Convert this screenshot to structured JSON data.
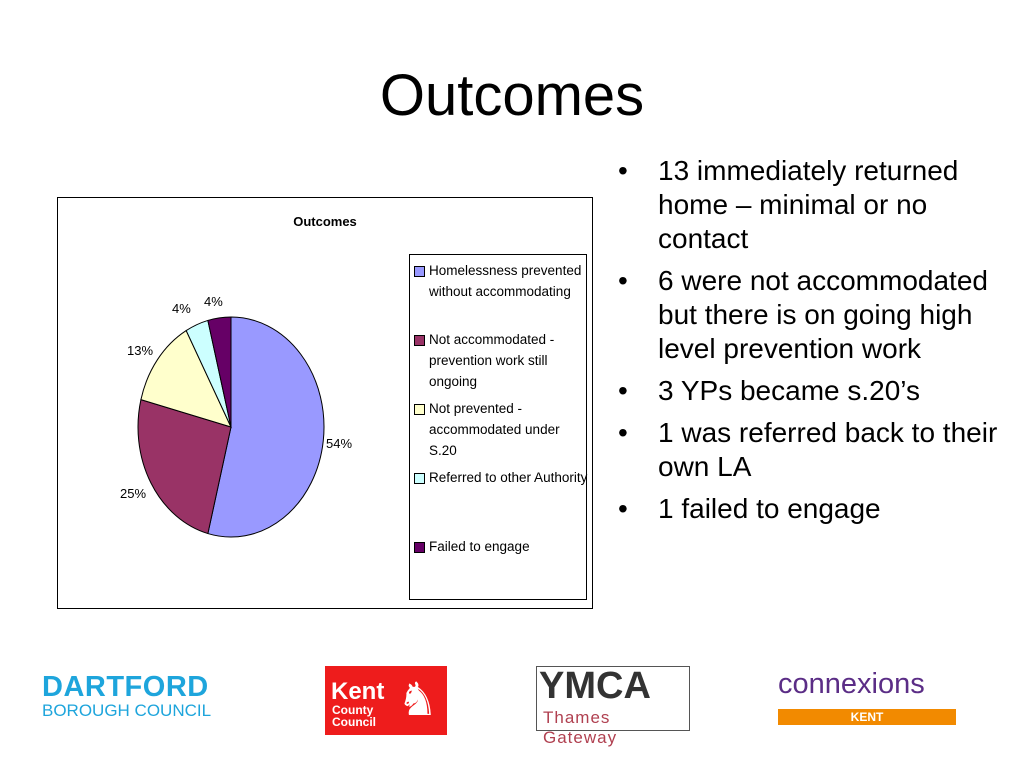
{
  "title": "Outcomes",
  "chart_data": {
    "type": "pie",
    "title": "Outcomes",
    "legend_position": "right",
    "categories": [
      "Homelessness prevented without accommodating",
      "Not accommodated - prevention work still ongoing",
      "Not prevented - accommodated under S.20",
      "Referred to other Authority",
      "Failed to engage"
    ],
    "values": [
      54,
      25,
      13,
      4,
      4
    ],
    "labels": [
      "54%",
      "25%",
      "13%",
      "4%",
      "4%"
    ],
    "colors": [
      "#9999ff",
      "#993366",
      "#ffffcc",
      "#ccffff",
      "#660066"
    ]
  },
  "bullets": [
    "13 immediately returned home – minimal or no contact",
    "6 were not accommodated but there is on going high level prevention work",
    "3 YPs became s.20’s",
    "1 was referred back to their own LA",
    "1 failed to engage"
  ],
  "logos": {
    "dartford": [
      "DARTFORD",
      "BOROUGH COUNCIL"
    ],
    "kent": [
      "Kent",
      "County",
      "Council"
    ],
    "ymca": [
      "YMCA",
      "Thames Gateway"
    ],
    "connexions": [
      "connexions",
      "KENT"
    ]
  }
}
